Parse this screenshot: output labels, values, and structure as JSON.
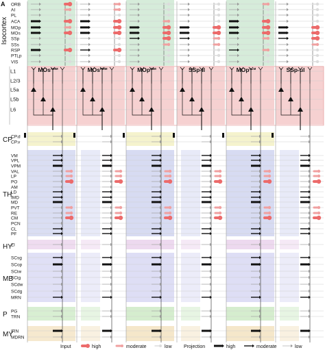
{
  "panel_label": "A",
  "colors": {
    "isocortex_bg": "#cfe9d3",
    "layers_bg": "#f5c9c9",
    "cp_bg": "#f3f1c4",
    "th_bg": "#d5d9f2",
    "hy_bg": "#ecd7ee",
    "mb_bg": "#dcdcf4",
    "p_bg": "#d3eccc",
    "my_bg": "#f4e5c8",
    "input_high": "#ec6b6b",
    "input_moderate": "#f0a0a0",
    "input_low": "#dcdcdc",
    "projection": "#111111"
  },
  "columns": [
    {
      "name": "MOs",
      "sup": "AMM",
      "highlighted": false
    },
    {
      "name": "MOs",
      "sup": "PMM",
      "highlighted": false
    },
    {
      "name": "MOp",
      "sup": "IMM",
      "highlighted": true
    },
    {
      "name": "SSp-ll",
      "sup": "",
      "highlighted": false
    },
    {
      "name": "MOp",
      "sup": "ALM",
      "highlighted": true
    },
    {
      "name": "SSp-ul",
      "sup": "",
      "highlighted": false
    }
  ],
  "groups": [
    {
      "label": "Isocortex",
      "regions": [
        "ORB",
        "AI",
        "PL",
        "ACA",
        "MOp",
        "MOs",
        "SSp",
        "SSs",
        "RSP",
        "PTLp",
        "VIS"
      ]
    },
    {
      "label": "",
      "regions": [
        "L1",
        "L2/3",
        "L5a",
        "L5b",
        "L6"
      ]
    },
    {
      "label": "CP",
      "regions": [
        "CP.d",
        "CP.v"
      ]
    },
    {
      "label": "TH",
      "regions": [
        "VM",
        "VPL",
        "VPM",
        "VAL",
        "LP",
        "PO",
        "AM",
        "LD",
        "IMD",
        "MD",
        "PVT",
        "RE",
        "CM",
        "PCN",
        "CL",
        "PF"
      ]
    },
    {
      "label": "HY",
      "regions": [
        "ZI"
      ]
    },
    {
      "label": "MB",
      "regions": [
        "SCsg",
        "SCop",
        "SCiw",
        "SCig",
        "SCdw",
        "SCdg",
        "MRN"
      ]
    },
    {
      "label": "P",
      "regions": [
        "PG",
        "TRN"
      ]
    },
    {
      "label": "MY",
      "regions": [
        "IRN",
        "MDRN"
      ]
    }
  ],
  "legend": {
    "input_label": "Input",
    "projection_label": "Projection",
    "levels": [
      "high",
      "moderate",
      "low"
    ]
  }
}
